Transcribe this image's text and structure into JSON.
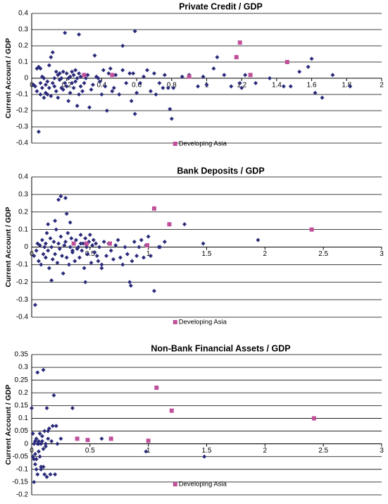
{
  "colors": {
    "other": "#2b2b7a",
    "developing_asia": "#c0509a"
  },
  "chart_data": [
    {
      "type": "scatter",
      "title": "Private Credit / GDP",
      "ylabel": "Current Account / GDP",
      "xlabel": "",
      "xlim": [
        0,
        2
      ],
      "ylim": [
        -0.4,
        0.4
      ],
      "grid": true,
      "legend": "bottom-center",
      "x_ticks": [
        "0",
        "0.2",
        "0.4",
        "0.6",
        "0.8",
        "1",
        "1.2",
        "1.4",
        "1.6",
        "1.8",
        "2"
      ],
      "y_ticks": [
        "0.4",
        "0.3",
        "0.2",
        "0.1",
        "0",
        "-0.1",
        "-0.2",
        "-0.3",
        "-0.4"
      ],
      "series": [
        {
          "name": "",
          "marker": "diamond",
          "x": [
            0.01,
            0.02,
            0.03,
            0.03,
            0.04,
            0.04,
            0.05,
            0.05,
            0.06,
            0.06,
            0.07,
            0.07,
            0.08,
            0.08,
            0.09,
            0.09,
            0.1,
            0.1,
            0.11,
            0.11,
            0.12,
            0.12,
            0.13,
            0.13,
            0.14,
            0.14,
            0.15,
            0.15,
            0.16,
            0.16,
            0.17,
            0.17,
            0.18,
            0.18,
            0.19,
            0.19,
            0.2,
            0.2,
            0.21,
            0.21,
            0.22,
            0.22,
            0.23,
            0.23,
            0.24,
            0.24,
            0.25,
            0.25,
            0.26,
            0.26,
            0.27,
            0.27,
            0.28,
            0.28,
            0.29,
            0.3,
            0.31,
            0.32,
            0.33,
            0.34,
            0.35,
            0.36,
            0.37,
            0.38,
            0.39,
            0.4,
            0.41,
            0.42,
            0.43,
            0.44,
            0.45,
            0.46,
            0.47,
            0.48,
            0.5,
            0.52,
            0.54,
            0.56,
            0.57,
            0.58,
            0.59,
            0.6,
            0.62,
            0.64,
            0.66,
            0.68,
            0.7,
            0.71,
            0.73,
            0.75,
            0.76,
            0.78,
            0.79,
            0.8,
            0.81,
            0.86,
            0.9,
            0.95,
            0.98,
            1.0,
            1.04,
            1.06,
            1.1,
            1.14,
            1.19,
            1.2,
            1.22,
            1.28,
            1.36,
            1.44,
            1.48,
            1.53,
            1.58,
            1.6,
            1.62,
            1.66,
            1.72,
            1.82,
            0.05,
            0.27,
            0.59,
            0.52
          ],
          "y": [
            -0.04,
            -0.05,
            0.06,
            -0.08,
            0.07,
            -0.33,
            -0.1,
            -0.03,
            0.01,
            -0.06,
            -0.12,
            0.0,
            -0.09,
            -0.04,
            -0.1,
            -0.02,
            0.08,
            -0.06,
            0.13,
            -0.11,
            0.16,
            -0.03,
            -0.05,
            0.0,
            0.04,
            -0.08,
            0.02,
            -0.12,
            0.03,
            -0.01,
            0.0,
            -0.06,
            0.04,
            -0.07,
            0.28,
            -0.03,
            0.03,
            -0.05,
            0.0,
            -0.14,
            0.01,
            -0.09,
            -0.03,
            0.04,
            0.02,
            -0.06,
            -0.02,
            0.05,
            -0.17,
            0.0,
            -0.1,
            0.03,
            0.01,
            -0.05,
            -0.08,
            -0.03,
            0.0,
            0.02,
            -0.18,
            -0.07,
            -0.04,
            0.14,
            0.01,
            0.0,
            -0.02,
            -0.1,
            0.05,
            -0.05,
            -0.2,
            0.03,
            0.06,
            -0.08,
            -0.06,
            0.02,
            -0.1,
            0.05,
            -0.03,
            0.03,
            -0.14,
            0.03,
            -0.22,
            -0.09,
            -0.03,
            0.01,
            0.05,
            -0.08,
            0.03,
            -0.1,
            -0.03,
            -0.06,
            0.02,
            -0.06,
            -0.19,
            -0.25,
            -0.06,
            0.01,
            0.02,
            -0.05,
            0.01,
            -0.04,
            0.06,
            0.13,
            0.02,
            -0.05,
            -0.03,
            -0.06,
            0.02,
            -0.03,
            0.0,
            -0.05,
            -0.05,
            0.04,
            0.07,
            0.12,
            -0.09,
            -0.12,
            0.02,
            -0.05,
            0.06,
            0.27,
            0.29,
            0.2
          ],
          "color": "#2b2b7a"
        },
        {
          "name": "Developing Asia",
          "marker": "square",
          "x": [
            0.3,
            0.46,
            0.9,
            1.17,
            1.19,
            1.25,
            1.46
          ],
          "y": [
            0.02,
            0.02,
            0.01,
            0.13,
            0.22,
            0.02,
            0.1
          ],
          "color": "#c0509a"
        }
      ]
    },
    {
      "type": "scatter",
      "title": "Bank Deposits / GDP",
      "ylabel": "Current Account / GDP",
      "xlabel": "",
      "xlim": [
        0,
        3
      ],
      "ylim": [
        -0.4,
        0.4
      ],
      "grid": true,
      "legend": "bottom-center",
      "x_ticks": [
        "0",
        "0.5",
        "1",
        "1.5",
        "2",
        "2.5",
        "3"
      ],
      "y_ticks": [
        "0.4",
        "0.3",
        "0.2",
        "0.1",
        "0",
        "-0.1",
        "-0.2",
        "-0.3",
        "-0.4"
      ],
      "series": [
        {
          "name": "",
          "marker": "diamond",
          "x": [
            0.02,
            0.04,
            0.05,
            0.06,
            0.07,
            0.08,
            0.09,
            0.1,
            0.11,
            0.12,
            0.13,
            0.14,
            0.15,
            0.16,
            0.17,
            0.18,
            0.19,
            0.2,
            0.21,
            0.22,
            0.23,
            0.24,
            0.25,
            0.26,
            0.27,
            0.28,
            0.29,
            0.3,
            0.31,
            0.32,
            0.33,
            0.34,
            0.35,
            0.36,
            0.37,
            0.38,
            0.39,
            0.4,
            0.41,
            0.42,
            0.43,
            0.44,
            0.45,
            0.46,
            0.47,
            0.48,
            0.49,
            0.5,
            0.51,
            0.52,
            0.53,
            0.54,
            0.55,
            0.56,
            0.57,
            0.58,
            0.6,
            0.62,
            0.64,
            0.66,
            0.68,
            0.7,
            0.72,
            0.74,
            0.76,
            0.78,
            0.8,
            0.82,
            0.84,
            0.86,
            0.88,
            0.9,
            0.92,
            0.94,
            0.96,
            0.98,
            1.0,
            1.02,
            1.05,
            1.1,
            1.14,
            1.31,
            1.47,
            1.94,
            0.03,
            0.23,
            0.25,
            0.3,
            0.33,
            0.14,
            0.17,
            0.46,
            0.6,
            0.85,
            1.09,
            0.12,
            0.2,
            0.29,
            0.35,
            0.42
          ],
          "y": [
            -0.05,
            -0.02,
            0.02,
            -0.08,
            0.01,
            -0.1,
            0.04,
            -0.04,
            0.0,
            -0.06,
            0.08,
            -0.02,
            -0.12,
            0.05,
            0.0,
            -0.07,
            0.03,
            -0.04,
            0.1,
            -0.09,
            0.02,
            -0.01,
            0.06,
            -0.05,
            -0.15,
            0.01,
            0.03,
            -0.06,
            0.08,
            -0.1,
            0.0,
            0.05,
            -0.03,
            0.02,
            -0.08,
            0.04,
            -0.01,
            0.0,
            -0.06,
            0.07,
            -0.02,
            0.02,
            -0.12,
            0.05,
            0.0,
            -0.04,
            0.03,
            0.07,
            -0.09,
            0.01,
            0.04,
            -0.03,
            0.02,
            -0.05,
            -0.08,
            0.0,
            -0.1,
            0.03,
            -0.05,
            0.02,
            -0.02,
            -0.07,
            0.01,
            0.04,
            -0.06,
            -0.1,
            0.0,
            -0.04,
            -0.2,
            -0.08,
            0.03,
            -0.05,
            0.0,
            0.04,
            -0.06,
            0.01,
            0.06,
            -0.05,
            -0.25,
            0.0,
            0.03,
            0.13,
            0.02,
            0.04,
            -0.33,
            0.27,
            0.29,
            0.19,
            0.14,
            0.13,
            -0.19,
            -0.2,
            -0.12,
            -0.22,
            0.0,
            0.02,
            0.15,
            0.28,
            -0.02,
            0.02
          ],
          "color": "#2b2b7a"
        },
        {
          "name": "Developing Asia",
          "marker": "square",
          "x": [
            0.36,
            0.47,
            0.67,
            0.99,
            1.05,
            1.18,
            2.4
          ],
          "y": [
            0.02,
            0.02,
            0.02,
            0.01,
            0.22,
            0.13,
            0.1
          ],
          "color": "#c0509a"
        }
      ]
    },
    {
      "type": "scatter",
      "title": "Non-Bank Financial Assets / GDP",
      "ylabel": "Current Account / GDP",
      "xlabel": "",
      "xlim": [
        0,
        3
      ],
      "ylim": [
        -0.2,
        0.35
      ],
      "grid": true,
      "legend": "bottom-center",
      "x_ticks": [
        "0",
        "0.5",
        "1",
        "1.5",
        "2",
        "2.5",
        "3"
      ],
      "y_ticks": [
        "0.35",
        "0.3",
        "0.25",
        "0.2",
        "0.15",
        "0.1",
        "0.05",
        "0",
        "-0.05",
        "-0.1",
        "-0.15",
        "-0.2"
      ],
      "series": [
        {
          "name": "",
          "marker": "diamond",
          "x": [
            0.0,
            0.01,
            0.01,
            0.02,
            0.02,
            0.03,
            0.03,
            0.04,
            0.04,
            0.05,
            0.05,
            0.06,
            0.06,
            0.07,
            0.07,
            0.08,
            0.08,
            0.09,
            0.09,
            0.1,
            0.1,
            0.11,
            0.11,
            0.12,
            0.12,
            0.13,
            0.13,
            0.14,
            0.15,
            0.16,
            0.17,
            0.18,
            0.19,
            0.2,
            0.22,
            0.25,
            0.35,
            0.6,
            0.98,
            1.48,
            0.02,
            0.05,
            0.1,
            0.03,
            0.04,
            0.06,
            0.08,
            0.14,
            0.21
          ],
          "y": [
            0.14,
            0.04,
            -0.05,
            0.0,
            -0.06,
            0.01,
            -0.08,
            0.02,
            -0.1,
            0.0,
            -0.12,
            0.01,
            -0.03,
            0.04,
            -0.05,
            0.0,
            -0.09,
            0.01,
            0.03,
            -0.02,
            -0.09,
            0.05,
            -0.12,
            0.0,
            -0.01,
            0.14,
            -0.13,
            0.02,
            0.06,
            -0.12,
            0.01,
            0.07,
            0.19,
            -0.12,
            0.0,
            0.02,
            0.14,
            0.02,
            -0.03,
            -0.05,
            -0.15,
            0.28,
            0.29,
            -0.04,
            -0.06,
            0.0,
            -0.1,
            0.05,
            0.07
          ],
          "color": "#2b2b7a"
        },
        {
          "name": "Developing Asia",
          "marker": "square",
          "x": [
            0.39,
            0.48,
            0.68,
            1.0,
            1.07,
            1.2,
            2.42
          ],
          "y": [
            0.02,
            0.015,
            0.02,
            0.012,
            0.22,
            0.13,
            0.1
          ],
          "color": "#c0509a"
        }
      ]
    }
  ]
}
